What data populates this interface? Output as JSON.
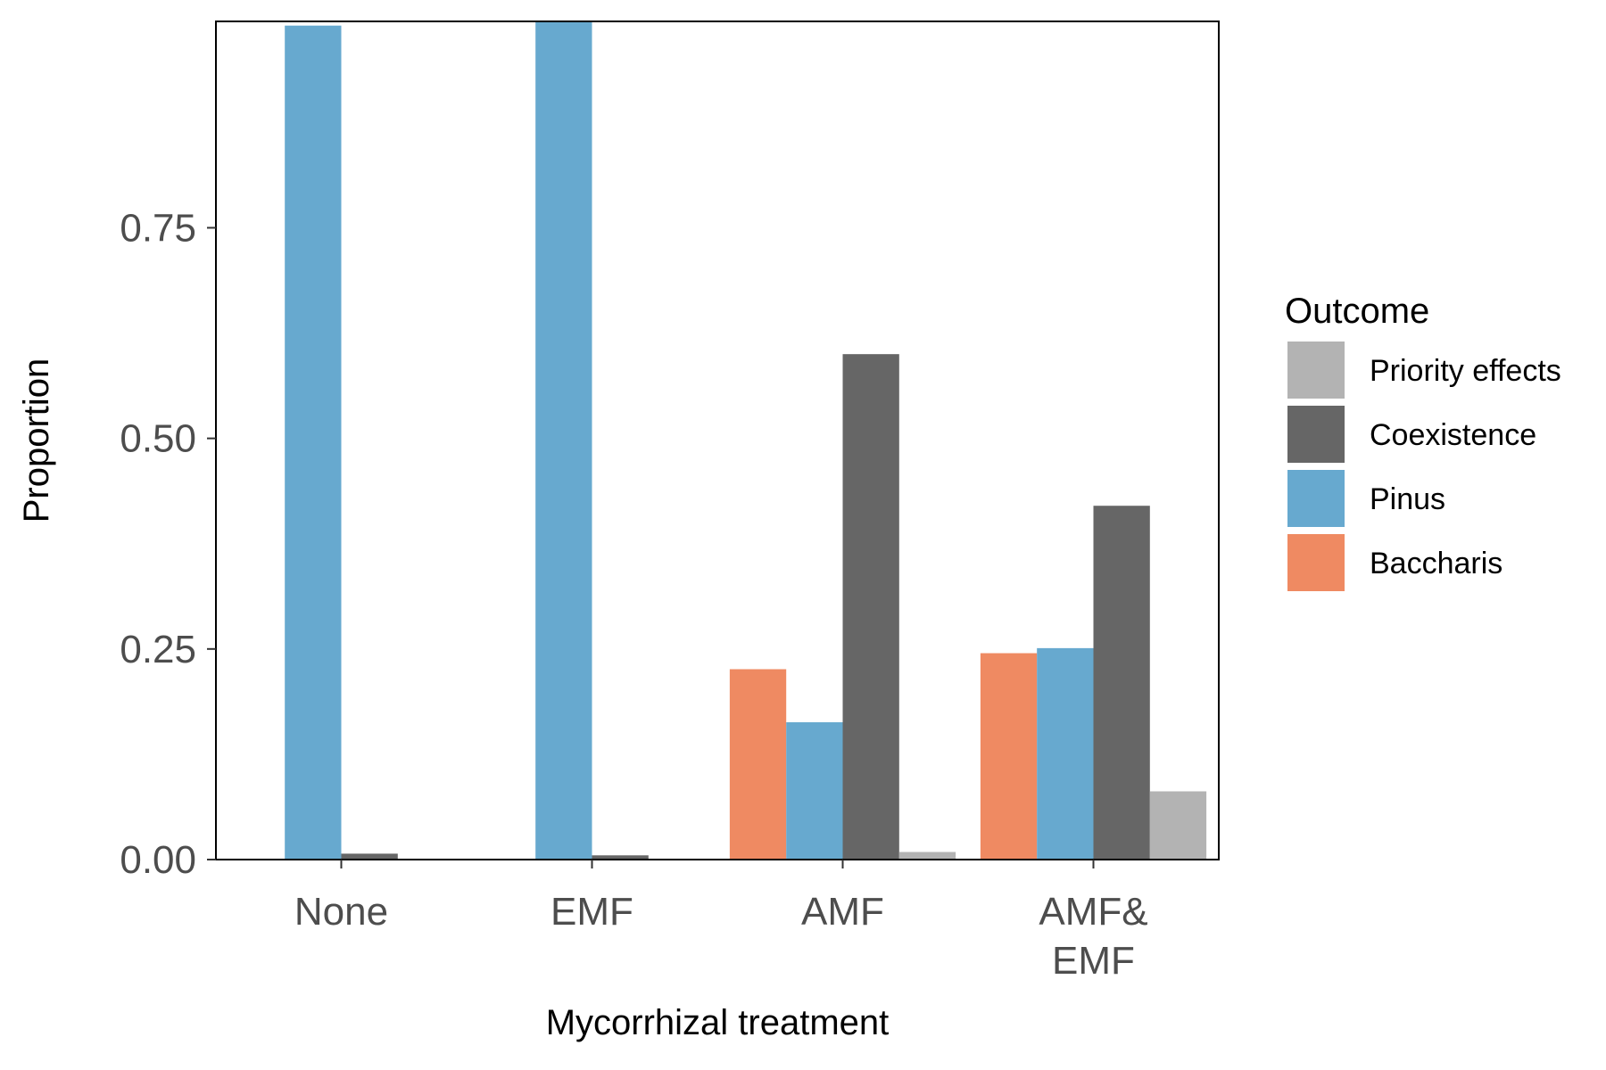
{
  "chart_data": {
    "type": "bar",
    "xlabel": "Mycorrhizal treatment",
    "ylabel": "Proportion",
    "ylim": [
      0,
      0.995
    ],
    "yticks": [
      "0.00",
      "0.25",
      "0.50",
      "0.75"
    ],
    "ytick_values": [
      0,
      0.25,
      0.5,
      0.75
    ],
    "grid": false,
    "legend_position": "right",
    "categories": [
      {
        "label_lines": [
          "None"
        ]
      },
      {
        "label_lines": [
          "EMF"
        ]
      },
      {
        "label_lines": [
          "AMF"
        ]
      },
      {
        "label_lines": [
          "AMF&",
          "EMF"
        ]
      }
    ],
    "bar_order": [
      "Baccharis",
      "Pinus",
      "Coexistence",
      "Priority effects"
    ],
    "series": [
      {
        "name": "Baccharis",
        "color": "#ef8a62",
        "values": [
          0,
          0,
          0.226,
          0.245
        ]
      },
      {
        "name": "Pinus",
        "color": "#67a9cf",
        "values": [
          0.99,
          0.995,
          0.163,
          0.251
        ]
      },
      {
        "name": "Coexistence",
        "color": "#666666",
        "values": [
          0.007,
          0.005,
          0.6,
          0.42
        ]
      },
      {
        "name": "Priority effects",
        "color": "#b3b3b3",
        "values": [
          0,
          0,
          0.009,
          0.081
        ]
      }
    ],
    "legend": {
      "title": "Outcome",
      "items": [
        {
          "label": "Priority effects",
          "color": "#b3b3b3"
        },
        {
          "label": "Coexistence",
          "color": "#666666"
        },
        {
          "label": "Pinus",
          "color": "#67a9cf"
        },
        {
          "label": "Baccharis",
          "color": "#ef8a62"
        }
      ]
    }
  }
}
